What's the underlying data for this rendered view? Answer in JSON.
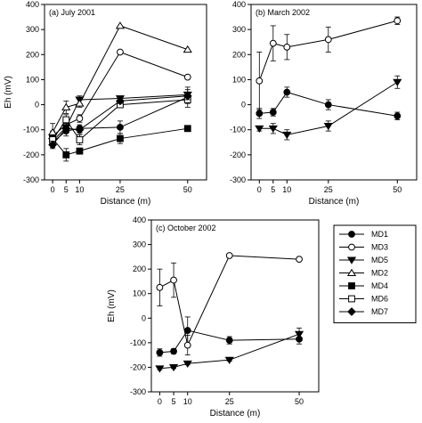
{
  "chart_data": [
    {
      "type": "line",
      "panel_label": "(a) July 2001",
      "xlabel": "Distance (m)",
      "ylabel": "Eh (mV)",
      "x": [
        0,
        5,
        10,
        25,
        50
      ],
      "xticks": [
        0,
        5,
        10,
        25,
        50
      ],
      "ylim": [
        -300,
        400
      ],
      "yticks": [
        -300,
        -200,
        -100,
        0,
        100,
        200,
        300,
        400
      ],
      "series": [
        {
          "name": "MD1",
          "marker": "circle-filled",
          "values": [
            -150,
            -105,
            -95,
            -90,
            30
          ],
          "errors": [
            20,
            20,
            15,
            25,
            40
          ]
        },
        {
          "name": "MD3",
          "marker": "circle-open",
          "values": [
            -125,
            -80,
            -55,
            210,
            110
          ],
          "errors": [
            20,
            15,
            15,
            0,
            0
          ]
        },
        {
          "name": "MD5",
          "marker": "triangle-down-filled",
          "values": [
            -145,
            -90,
            20,
            25,
            40
          ],
          "errors": [
            15,
            15,
            15,
            10,
            20
          ]
        },
        {
          "name": "MD2",
          "marker": "triangle-up-open",
          "values": [
            -110,
            -10,
            5,
            315,
            220
          ],
          "errors": [
            35,
            25,
            15,
            0,
            0
          ]
        },
        {
          "name": "MD4",
          "marker": "square-filled",
          "values": [
            -135,
            -200,
            -185,
            -135,
            -95
          ],
          "errors": [
            15,
            25,
            10,
            20,
            5
          ]
        },
        {
          "name": "MD6",
          "marker": "square-open",
          "values": [
            -140,
            -60,
            -140,
            0,
            20
          ],
          "errors": [
            15,
            20,
            20,
            10,
            15
          ]
        },
        {
          "name": "MD7",
          "marker": "diamond-filled",
          "values": [
            -160,
            -95,
            -100,
            15,
            35
          ],
          "errors": [
            15,
            15,
            15,
            10,
            15
          ]
        }
      ]
    },
    {
      "type": "line",
      "panel_label": "(b) March 2002",
      "xlabel": "Distance (m)",
      "ylabel": "",
      "x": [
        0,
        5,
        10,
        25,
        50
      ],
      "xticks": [
        0,
        5,
        10,
        25,
        50
      ],
      "ylim": [
        -300,
        400
      ],
      "yticks": [
        -300,
        -200,
        -100,
        0,
        100,
        200,
        300,
        400
      ],
      "series": [
        {
          "name": "MD1",
          "marker": "circle-filled",
          "values": [
            -35,
            -30,
            50,
            0,
            -45
          ],
          "errors": [
            20,
            15,
            20,
            20,
            15
          ]
        },
        {
          "name": "MD3",
          "marker": "circle-open",
          "values": [
            95,
            245,
            230,
            260,
            335
          ],
          "errors": [
            115,
            70,
            50,
            50,
            15
          ]
        },
        {
          "name": "MD5",
          "marker": "triangle-down-filled",
          "values": [
            -95,
            -95,
            -120,
            -85,
            90
          ],
          "errors": [
            10,
            20,
            20,
            20,
            25
          ]
        }
      ]
    },
    {
      "type": "line",
      "panel_label": "(c) October 2002",
      "xlabel": "Distance (m)",
      "ylabel": "Eh (mV)",
      "x": [
        0,
        5,
        10,
        25,
        50
      ],
      "xticks": [
        0,
        5,
        10,
        25,
        50
      ],
      "ylim": [
        -300,
        400
      ],
      "yticks": [
        -300,
        -200,
        -100,
        0,
        100,
        200,
        300,
        400
      ],
      "series": [
        {
          "name": "MD1",
          "marker": "circle-filled",
          "values": [
            -140,
            -135,
            -50,
            -90,
            -85
          ],
          "errors": [
            15,
            10,
            55,
            15,
            20
          ]
        },
        {
          "name": "MD3",
          "marker": "circle-open",
          "values": [
            125,
            155,
            -110,
            255,
            240
          ],
          "errors": [
            75,
            70,
            40,
            0,
            0
          ]
        },
        {
          "name": "MD5",
          "marker": "triangle-down-filled",
          "values": [
            -205,
            -200,
            -185,
            -170,
            -65
          ],
          "errors": [
            5,
            5,
            5,
            5,
            25
          ]
        }
      ]
    }
  ],
  "legend": {
    "items": [
      {
        "name": "MD1",
        "marker": "circle-filled"
      },
      {
        "name": "MD3",
        "marker": "circle-open"
      },
      {
        "name": "MD5",
        "marker": "triangle-down-filled"
      },
      {
        "name": "MD2",
        "marker": "triangle-up-open"
      },
      {
        "name": "MD4",
        "marker": "square-filled"
      },
      {
        "name": "MD6",
        "marker": "square-open"
      },
      {
        "name": "MD7",
        "marker": "diamond-filled"
      }
    ]
  }
}
